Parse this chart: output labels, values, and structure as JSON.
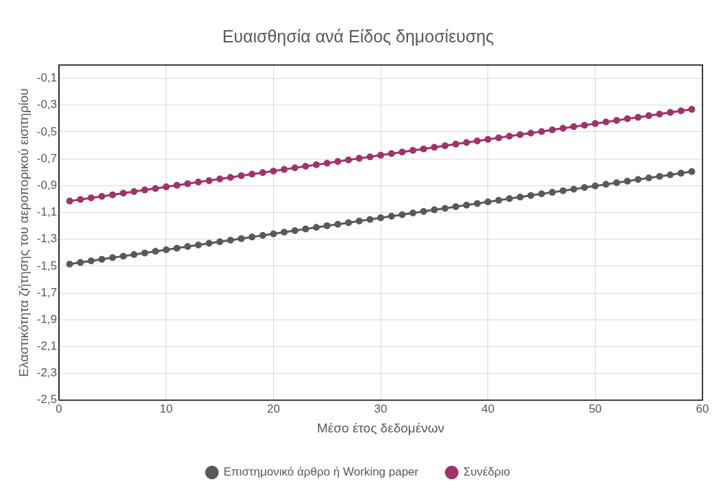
{
  "chart_data": {
    "type": "line",
    "title": "Ευαισθησία ανά Είδος δημοσίευσης",
    "xlabel": "Μέσο έτος δεδομένων",
    "ylabel": "Ελαστικότητα ζήτησης του αεροπορικού εισιτηρίου",
    "x": [
      1,
      2,
      3,
      4,
      5,
      6,
      7,
      8,
      9,
      10,
      11,
      12,
      13,
      14,
      15,
      16,
      17,
      18,
      19,
      20,
      21,
      22,
      23,
      24,
      25,
      26,
      27,
      28,
      29,
      30,
      31,
      32,
      33,
      34,
      35,
      36,
      37,
      38,
      39,
      40,
      41,
      42,
      43,
      44,
      45,
      46,
      47,
      48,
      49,
      50,
      51,
      52,
      53,
      54,
      55,
      56,
      57,
      58,
      59
    ],
    "series": [
      {
        "name": "Επιστημονικό άρθρο ή Working paper",
        "color": "#595959",
        "values": [
          -1.485,
          -1.473,
          -1.461,
          -1.449,
          -1.437,
          -1.426,
          -1.414,
          -1.402,
          -1.39,
          -1.378,
          -1.366,
          -1.354,
          -1.342,
          -1.33,
          -1.318,
          -1.307,
          -1.295,
          -1.283,
          -1.271,
          -1.259,
          -1.247,
          -1.235,
          -1.223,
          -1.211,
          -1.199,
          -1.188,
          -1.176,
          -1.164,
          -1.152,
          -1.14,
          -1.128,
          -1.116,
          -1.104,
          -1.092,
          -1.08,
          -1.069,
          -1.057,
          -1.045,
          -1.033,
          -1.021,
          -1.009,
          -0.997,
          -0.985,
          -0.973,
          -0.961,
          -0.95,
          -0.938,
          -0.926,
          -0.914,
          -0.902,
          -0.89,
          -0.878,
          -0.866,
          -0.854,
          -0.842,
          -0.831,
          -0.819,
          -0.807,
          -0.795
        ]
      },
      {
        "name": "Συνέδριο",
        "color": "#9e3467",
        "values": [
          -1.015,
          -1.003,
          -0.991,
          -0.98,
          -0.968,
          -0.956,
          -0.944,
          -0.932,
          -0.921,
          -0.909,
          -0.897,
          -0.885,
          -0.873,
          -0.862,
          -0.85,
          -0.838,
          -0.826,
          -0.814,
          -0.803,
          -0.791,
          -0.779,
          -0.767,
          -0.755,
          -0.744,
          -0.732,
          -0.72,
          -0.708,
          -0.696,
          -0.685,
          -0.673,
          -0.661,
          -0.649,
          -0.637,
          -0.626,
          -0.614,
          -0.602,
          -0.59,
          -0.578,
          -0.567,
          -0.555,
          -0.543,
          -0.531,
          -0.519,
          -0.508,
          -0.496,
          -0.484,
          -0.472,
          -0.46,
          -0.449,
          -0.437,
          -0.425,
          -0.413,
          -0.401,
          -0.39,
          -0.378,
          -0.366,
          -0.354,
          -0.342,
          -0.331
        ]
      }
    ],
    "xlim": [
      0,
      60
    ],
    "xticks": [
      0,
      10,
      20,
      30,
      40,
      50,
      60
    ],
    "ylim": [
      -2.5,
      0
    ],
    "yticks": [
      {
        "value": -2.5,
        "label": "-2,5"
      },
      {
        "value": -2.3,
        "label": "-2,3"
      },
      {
        "value": -2.1,
        "label": "-2,1"
      },
      {
        "value": -1.9,
        "label": "-1,9"
      },
      {
        "value": -1.7,
        "label": "-1,7"
      },
      {
        "value": -1.5,
        "label": "-1,5"
      },
      {
        "value": -1.3,
        "label": "-1,3"
      },
      {
        "value": -1.1,
        "label": "-1,1"
      },
      {
        "value": -0.9,
        "label": "-0,9"
      },
      {
        "value": -0.7,
        "label": "-0,7"
      },
      {
        "value": -0.5,
        "label": "-0,5"
      },
      {
        "value": -0.3,
        "label": "-0,3"
      },
      {
        "value": -0.1,
        "label": "-0,1"
      }
    ],
    "grid": true,
    "legend": "bottom",
    "marker": "circle",
    "line_style": "solid"
  }
}
